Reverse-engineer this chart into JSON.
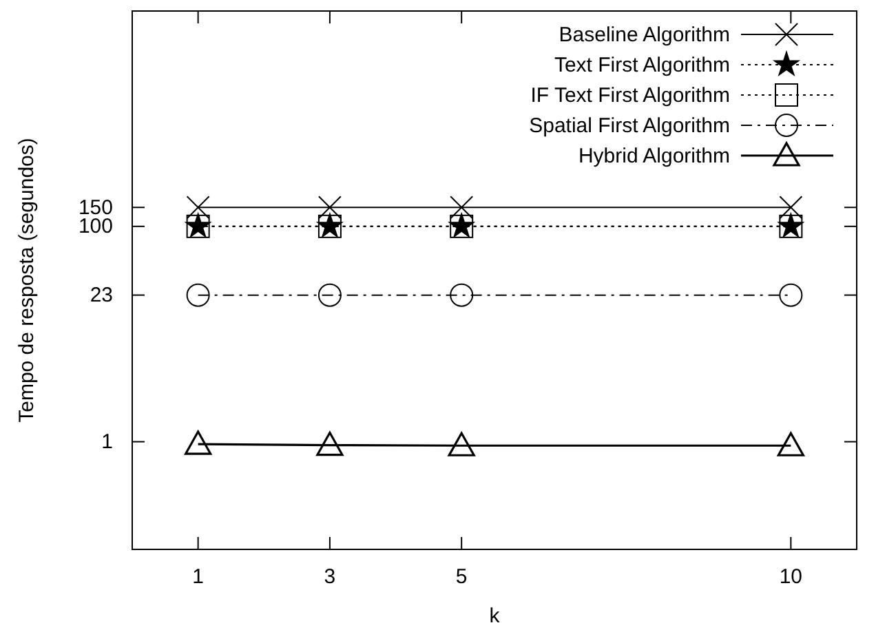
{
  "chart_data": {
    "type": "line",
    "xlabel": "k",
    "ylabel": "Tempo de resposta (segundos)",
    "x": [
      1,
      3,
      5,
      10
    ],
    "xlim": [
      0,
      11
    ],
    "xticks": [
      1,
      3,
      5,
      10
    ],
    "ylim": [
      0.1,
      10000
    ],
    "yticks": [
      1,
      23,
      100,
      150
    ],
    "log": "y",
    "legend": "top right",
    "grid": false,
    "series": [
      {
        "name": "Baseline Algorithm",
        "color": "#000000",
        "values": [
          150,
          150,
          150,
          150
        ],
        "marker": "cross",
        "line_style": "solid"
      },
      {
        "name": "Text First Algorithm",
        "color": "#000000",
        "values": [
          100,
          100,
          100,
          100
        ],
        "marker": "star",
        "line_style": "dotted"
      },
      {
        "name": "IF Text First Algorithm",
        "color": "#000000",
        "values": [
          100,
          100,
          100,
          100
        ],
        "marker": "square",
        "line_style": "dotted"
      },
      {
        "name": "Spatial First Algorithm",
        "color": "#000000",
        "values": [
          23,
          23,
          23,
          23
        ],
        "marker": "circle",
        "line_style": "dashed"
      },
      {
        "name": "Hybrid Algorithm",
        "color": "#000000",
        "values": [
          0.95,
          0.93,
          0.92,
          0.92
        ],
        "marker": "triangle",
        "line_style": "solid"
      }
    ]
  }
}
